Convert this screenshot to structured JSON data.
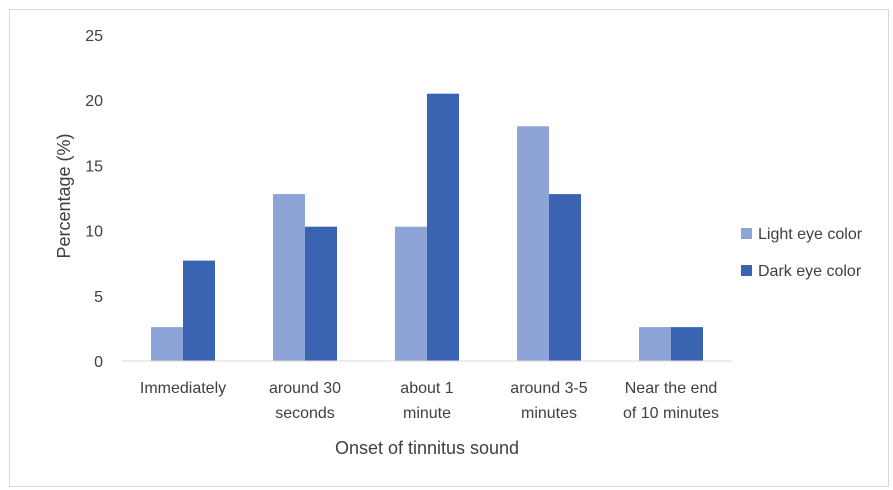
{
  "chart_data": {
    "type": "bar",
    "title": "",
    "xlabel": "Onset of tinnitus sound",
    "ylabel": "Percentage (%)",
    "ylim": [
      0,
      25
    ],
    "yticks": [
      0,
      5,
      10,
      15,
      20,
      25
    ],
    "grid": false,
    "legend_position": "right",
    "categories": [
      [
        "Immediately"
      ],
      [
        "around 30",
        "seconds"
      ],
      [
        "about 1",
        "minute"
      ],
      [
        "around 3-5",
        "minutes"
      ],
      [
        "Near the end",
        "of 10 minutes"
      ]
    ],
    "series": [
      {
        "name": "Light eye color",
        "color": "#8fa4d6",
        "values": [
          2.6,
          12.8,
          10.3,
          18.0,
          2.6
        ]
      },
      {
        "name": "Dark eye color",
        "color": "#3a64b1",
        "values": [
          7.7,
          10.3,
          20.5,
          12.8,
          2.6
        ]
      }
    ]
  }
}
